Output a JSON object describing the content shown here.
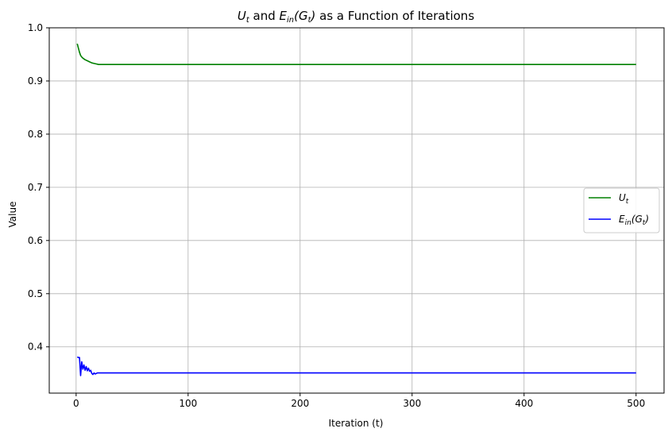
{
  "chart_data": {
    "type": "line",
    "title": "U_t and E_in(G_t) as a Function of Iterations",
    "title_parts": {
      "u_sym": "U",
      "u_sub": "t",
      "and": " and ",
      "e_sym": "E",
      "e_sub": "in",
      "g_open": "(G",
      "g_sub": "t",
      "g_close": ")",
      "rest": " as a Function of Iterations"
    },
    "xlabel": "Iteration (t)",
    "ylabel": "Value",
    "xlim": [
      -24,
      525
    ],
    "ylim": [
      0.313,
      1.0
    ],
    "xticks": [
      0,
      100,
      200,
      300,
      400,
      500
    ],
    "yticks": [
      0.4,
      0.5,
      0.6,
      0.7,
      0.8,
      0.9,
      1.0
    ],
    "grid": true,
    "legend_position": "center-right",
    "series": [
      {
        "name": "U_t",
        "legend": {
          "sym": "U",
          "sub": "t",
          "pre": "",
          "post": ""
        },
        "color": "#008000",
        "x": [
          1,
          2,
          3,
          4,
          5,
          6,
          8,
          10,
          12,
          14,
          16,
          18,
          20,
          25,
          50,
          100,
          200,
          300,
          400,
          500
        ],
        "values": [
          0.97,
          0.962,
          0.954,
          0.948,
          0.945,
          0.943,
          0.94,
          0.938,
          0.936,
          0.934,
          0.933,
          0.932,
          0.931,
          0.931,
          0.931,
          0.931,
          0.931,
          0.931,
          0.931,
          0.931
        ]
      },
      {
        "name": "E_in(G_t)",
        "legend": {
          "sym": "E",
          "sub": "in",
          "pre": "",
          "post": "",
          "arg_open": "(G",
          "arg_sub": "t",
          "arg_close": ")"
        },
        "color": "#0000ff",
        "x": [
          1,
          2,
          3,
          4,
          5,
          6,
          7,
          8,
          9,
          10,
          11,
          12,
          13,
          14,
          15,
          16,
          17,
          18,
          19,
          20,
          25,
          50,
          100,
          200,
          300,
          400,
          500
        ],
        "values": [
          0.381,
          0.38,
          0.38,
          0.346,
          0.372,
          0.358,
          0.366,
          0.356,
          0.363,
          0.355,
          0.36,
          0.354,
          0.356,
          0.35,
          0.348,
          0.351,
          0.349,
          0.35,
          0.351,
          0.351,
          0.351,
          0.351,
          0.351,
          0.351,
          0.351,
          0.351,
          0.351
        ]
      }
    ]
  }
}
